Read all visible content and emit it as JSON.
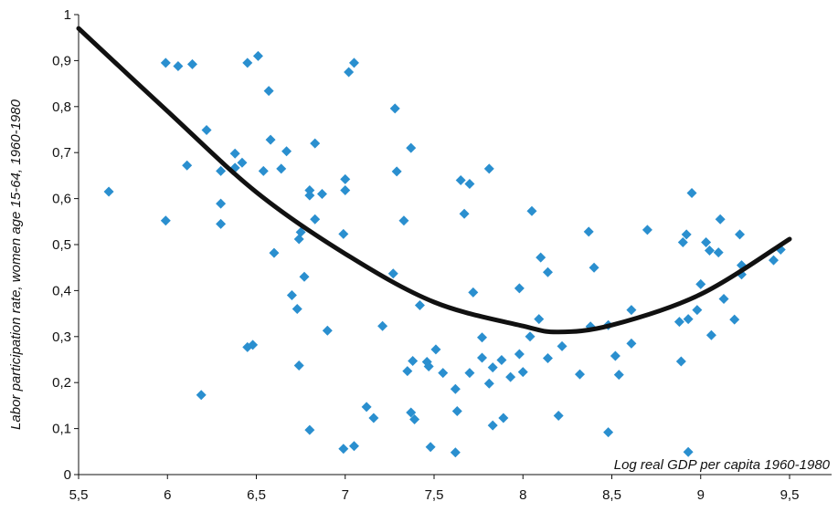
{
  "chart_data": {
    "type": "scatter",
    "title": "",
    "xlabel": "Log real GDP per capita 1960-1980",
    "ylabel": "Labor participation rate, women age 15-64, 1960-1980",
    "xlim": [
      5.5,
      9.75
    ],
    "ylim": [
      0,
      1
    ],
    "x_ticks": [
      5.5,
      6,
      6.5,
      7,
      7.5,
      8,
      8.5,
      9,
      9.5
    ],
    "x_tick_labels": [
      "5,5",
      "6",
      "6,5",
      "7",
      "7,5",
      "8",
      "8,5",
      "9",
      "9,5"
    ],
    "y_ticks": [
      0,
      0.1,
      0.2,
      0.3,
      0.4,
      0.5,
      0.6,
      0.7,
      0.8,
      0.9,
      1
    ],
    "y_tick_labels": [
      "0",
      "0,1",
      "0,2",
      "0,3",
      "0,4",
      "0,5",
      "0,6",
      "0,7",
      "0,8",
      "0,9",
      "1"
    ],
    "grid": false,
    "point_color": "#2a8fcf",
    "fit_color": "#111111",
    "points": [
      [
        5.67,
        0.615
      ],
      [
        5.99,
        0.895
      ],
      [
        5.99,
        0.552
      ],
      [
        6.06,
        0.888
      ],
      [
        6.11,
        0.672
      ],
      [
        6.14,
        0.892
      ],
      [
        6.19,
        0.173
      ],
      [
        6.22,
        0.749
      ],
      [
        6.3,
        0.66
      ],
      [
        6.3,
        0.589
      ],
      [
        6.3,
        0.545
      ],
      [
        6.38,
        0.698
      ],
      [
        6.38,
        0.667
      ],
      [
        6.42,
        0.678
      ],
      [
        6.45,
        0.895
      ],
      [
        6.45,
        0.277
      ],
      [
        6.48,
        0.282
      ],
      [
        6.51,
        0.91
      ],
      [
        6.54,
        0.66
      ],
      [
        6.57,
        0.834
      ],
      [
        6.58,
        0.728
      ],
      [
        6.6,
        0.482
      ],
      [
        6.64,
        0.665
      ],
      [
        6.67,
        0.703
      ],
      [
        6.7,
        0.39
      ],
      [
        6.73,
        0.36
      ],
      [
        6.74,
        0.512
      ],
      [
        6.74,
        0.237
      ],
      [
        6.75,
        0.527
      ],
      [
        6.77,
        0.43
      ],
      [
        6.8,
        0.618
      ],
      [
        6.8,
        0.607
      ],
      [
        6.8,
        0.097
      ],
      [
        6.83,
        0.72
      ],
      [
        6.83,
        0.555
      ],
      [
        6.87,
        0.61
      ],
      [
        6.9,
        0.313
      ],
      [
        6.99,
        0.523
      ],
      [
        7.0,
        0.642
      ],
      [
        7.0,
        0.618
      ],
      [
        6.99,
        0.056
      ],
      [
        7.02,
        0.875
      ],
      [
        7.05,
        0.895
      ],
      [
        7.05,
        0.062
      ],
      [
        7.12,
        0.147
      ],
      [
        7.16,
        0.123
      ],
      [
        7.21,
        0.323
      ],
      [
        7.27,
        0.437
      ],
      [
        7.28,
        0.796
      ],
      [
        7.29,
        0.659
      ],
      [
        7.33,
        0.552
      ],
      [
        7.35,
        0.225
      ],
      [
        7.37,
        0.71
      ],
      [
        7.37,
        0.135
      ],
      [
        7.38,
        0.247
      ],
      [
        7.39,
        0.12
      ],
      [
        7.42,
        0.368
      ],
      [
        7.46,
        0.245
      ],
      [
        7.47,
        0.235
      ],
      [
        7.48,
        0.06
      ],
      [
        7.51,
        0.272
      ],
      [
        7.55,
        0.221
      ],
      [
        7.62,
        0.186
      ],
      [
        7.62,
        0.048
      ],
      [
        7.63,
        0.138
      ],
      [
        7.65,
        0.64
      ],
      [
        7.67,
        0.567
      ],
      [
        7.7,
        0.632
      ],
      [
        7.7,
        0.221
      ],
      [
        7.72,
        0.396
      ],
      [
        7.77,
        0.298
      ],
      [
        7.77,
        0.254
      ],
      [
        7.81,
        0.665
      ],
      [
        7.81,
        0.198
      ],
      [
        7.83,
        0.233
      ],
      [
        7.83,
        0.107
      ],
      [
        7.88,
        0.249
      ],
      [
        7.89,
        0.123
      ],
      [
        7.93,
        0.212
      ],
      [
        7.98,
        0.405
      ],
      [
        7.98,
        0.262
      ],
      [
        8.0,
        0.223
      ],
      [
        8.04,
        0.3
      ],
      [
        8.05,
        0.573
      ],
      [
        8.09,
        0.338
      ],
      [
        8.1,
        0.472
      ],
      [
        8.14,
        0.44
      ],
      [
        8.14,
        0.253
      ],
      [
        8.2,
        0.128
      ],
      [
        8.22,
        0.279
      ],
      [
        8.32,
        0.218
      ],
      [
        8.37,
        0.528
      ],
      [
        8.38,
        0.322
      ],
      [
        8.4,
        0.45
      ],
      [
        8.48,
        0.325
      ],
      [
        8.48,
        0.092
      ],
      [
        8.52,
        0.258
      ],
      [
        8.54,
        0.217
      ],
      [
        8.61,
        0.358
      ],
      [
        8.61,
        0.285
      ],
      [
        8.7,
        0.532
      ],
      [
        8.88,
        0.332
      ],
      [
        8.89,
        0.246
      ],
      [
        8.9,
        0.505
      ],
      [
        8.92,
        0.522
      ],
      [
        8.93,
        0.338
      ],
      [
        8.93,
        0.049
      ],
      [
        8.95,
        0.612
      ],
      [
        8.98,
        0.358
      ],
      [
        9.0,
        0.414
      ],
      [
        9.03,
        0.505
      ],
      [
        9.05,
        0.487
      ],
      [
        9.06,
        0.303
      ],
      [
        9.11,
        0.555
      ],
      [
        9.1,
        0.483
      ],
      [
        9.13,
        0.382
      ],
      [
        9.19,
        0.337
      ],
      [
        9.22,
        0.522
      ],
      [
        9.23,
        0.455
      ],
      [
        9.23,
        0.435
      ],
      [
        9.41,
        0.466
      ],
      [
        9.45,
        0.489
      ]
    ],
    "fit_curve": {
      "type": "quadratic",
      "description": "fitted line",
      "x_range": [
        5.5,
        9.5
      ],
      "points": [
        [
          5.5,
          0.97
        ],
        [
          6.0,
          0.79
        ],
        [
          6.5,
          0.614
        ],
        [
          7.0,
          0.48
        ],
        [
          7.5,
          0.375
        ],
        [
          8.0,
          0.323
        ],
        [
          8.2,
          0.31
        ],
        [
          8.5,
          0.325
        ],
        [
          9.0,
          0.392
        ],
        [
          9.5,
          0.512
        ]
      ]
    }
  }
}
